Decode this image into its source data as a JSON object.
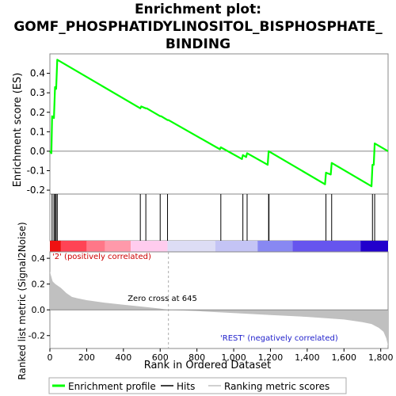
{
  "chart_data": {
    "type": "line",
    "title_lines": [
      "Enrichment plot:",
      "GOMF_PHOSPHATIDYLINOSITOL_BISPHOSPHATE_",
      "BINDING"
    ],
    "x_axis": {
      "label": "Rank in Ordered Dataset",
      "range": [
        0,
        1840
      ],
      "ticks": [
        0,
        200,
        400,
        600,
        800,
        1000,
        1200,
        1400,
        1600,
        1800
      ],
      "tick_labels": [
        "0",
        "200",
        "400",
        "600",
        "800",
        "1,000",
        "1,200",
        "1,400",
        "1,600",
        "1,800"
      ]
    },
    "es_panel": {
      "ylabel": "Enrichment score (ES)",
      "ylim": [
        -0.22,
        0.5
      ],
      "yticks": [
        -0.2,
        -0.1,
        0.0,
        0.1,
        0.2,
        0.3,
        0.4
      ],
      "ytick_labels": [
        "-0.2",
        "-0.1",
        "0.0",
        "0.1",
        "0.2",
        "0.3",
        "0.4"
      ],
      "series_color": "#00ff00",
      "points": [
        [
          0,
          0.0
        ],
        [
          8,
          -0.01
        ],
        [
          12,
          0.18
        ],
        [
          22,
          0.17
        ],
        [
          28,
          0.33
        ],
        [
          34,
          0.32
        ],
        [
          40,
          0.47
        ],
        [
          492,
          0.22
        ],
        [
          497,
          0.23
        ],
        [
          522,
          0.22
        ],
        [
          527,
          0.22
        ],
        [
          600,
          0.18
        ],
        [
          605,
          0.18
        ],
        [
          640,
          0.16
        ],
        [
          645,
          0.16
        ],
        [
          925,
          0.01
        ],
        [
          930,
          0.02
        ],
        [
          1045,
          -0.04
        ],
        [
          1050,
          -0.02
        ],
        [
          1068,
          -0.03
        ],
        [
          1073,
          -0.01
        ],
        [
          1185,
          -0.07
        ],
        [
          1190,
          0.0
        ],
        [
          1497,
          -0.17
        ],
        [
          1502,
          -0.11
        ],
        [
          1528,
          -0.12
        ],
        [
          1533,
          -0.06
        ],
        [
          1750,
          -0.18
        ],
        [
          1755,
          -0.07
        ],
        [
          1762,
          -0.07
        ],
        [
          1767,
          0.04
        ],
        [
          1840,
          0.0
        ]
      ]
    },
    "hits_panel": {
      "hit_positions": [
        12,
        22,
        28,
        34,
        40,
        492,
        522,
        600,
        640,
        930,
        1050,
        1073,
        1190,
        1192,
        1502,
        1533,
        1755,
        1767
      ]
    },
    "colorbar": {
      "segments": [
        {
          "from": 0,
          "to": 60,
          "color": "#ee1111"
        },
        {
          "from": 60,
          "to": 200,
          "color": "#ff4455"
        },
        {
          "from": 200,
          "to": 300,
          "color": "#ff7788"
        },
        {
          "from": 300,
          "to": 440,
          "color": "#ff99aa"
        },
        {
          "from": 440,
          "to": 640,
          "color": "#ffccee"
        },
        {
          "from": 640,
          "to": 900,
          "color": "#ddddf5"
        },
        {
          "from": 900,
          "to": 1130,
          "color": "#c4c4f5"
        },
        {
          "from": 1130,
          "to": 1320,
          "color": "#8888f2"
        },
        {
          "from": 1320,
          "to": 1690,
          "color": "#6655ee"
        },
        {
          "from": 1690,
          "to": 1840,
          "color": "#2200cc"
        }
      ]
    },
    "metric_panel": {
      "ylabel": "Ranked list metric (Signal2Noise)",
      "ylim": [
        -0.3,
        0.45
      ],
      "yticks": [
        -0.2,
        0.0,
        0.2,
        0.4
      ],
      "ytick_labels": [
        "-0.2",
        "0.0",
        "0.2",
        "0.4"
      ],
      "fill_color": "#c0c0c0",
      "profile": [
        [
          0,
          0.3
        ],
        [
          5,
          0.27
        ],
        [
          15,
          0.22
        ],
        [
          30,
          0.2
        ],
        [
          60,
          0.17
        ],
        [
          90,
          0.13
        ],
        [
          120,
          0.1
        ],
        [
          150,
          0.09
        ],
        [
          200,
          0.075
        ],
        [
          300,
          0.055
        ],
        [
          400,
          0.04
        ],
        [
          500,
          0.025
        ],
        [
          600,
          0.01
        ],
        [
          645,
          0.0
        ],
        [
          800,
          -0.01
        ],
        [
          1000,
          -0.025
        ],
        [
          1200,
          -0.04
        ],
        [
          1400,
          -0.055
        ],
        [
          1600,
          -0.075
        ],
        [
          1700,
          -0.095
        ],
        [
          1750,
          -0.11
        ],
        [
          1790,
          -0.14
        ],
        [
          1815,
          -0.17
        ],
        [
          1830,
          -0.22
        ],
        [
          1840,
          -0.28
        ]
      ],
      "zero_cross_label": "Zero cross at 645",
      "zero_cross_rank": 645,
      "pos_label": "'2' (positively correlated)",
      "pos_label_color": "#cc0000",
      "neg_label": "'REST' (negatively correlated)",
      "neg_label_color": "#2222cc"
    },
    "legend": {
      "placement": "bottom",
      "items": [
        {
          "label": "Enrichment profile",
          "color": "#00ff00"
        },
        {
          "label": "Hits",
          "color": "#000000"
        },
        {
          "label": "Ranking metric scores",
          "color": "#c0c0c0"
        }
      ]
    }
  }
}
